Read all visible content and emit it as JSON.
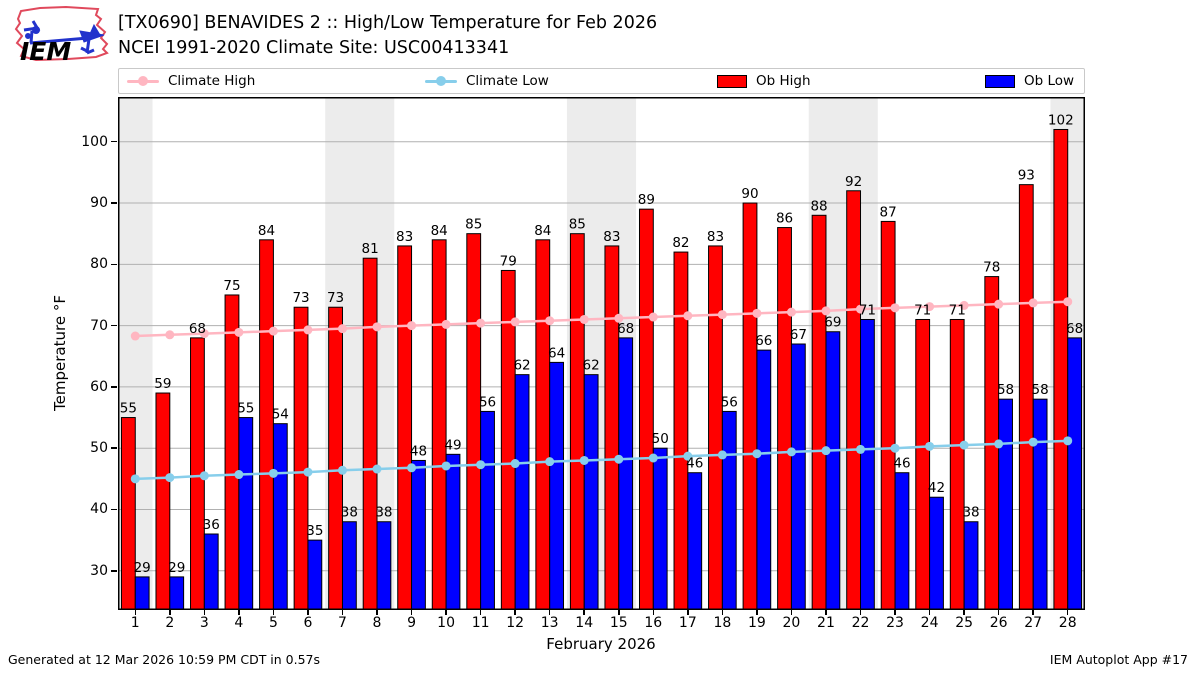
{
  "header": {
    "title_line1": "[TX0690] BENAVIDES 2 :: High/Low Temperature for Feb 2026",
    "title_line2": "NCEI 1991-2020 Climate Site: USC00413341",
    "logo_text": "IEM"
  },
  "legend": {
    "items": [
      {
        "label": "Climate High",
        "type": "line",
        "color": "#ffb6c1"
      },
      {
        "label": "Climate Low",
        "type": "line",
        "color": "#87ceeb"
      },
      {
        "label": "Ob High",
        "type": "patch",
        "color": "#ff0000"
      },
      {
        "label": "Ob Low",
        "type": "patch",
        "color": "#0000ff"
      }
    ]
  },
  "footer": {
    "left": "Generated at 12 Mar 2026 10:59 PM CDT in 0.57s",
    "right": "IEM Autoplot App #17"
  },
  "chart_data": {
    "type": "bar",
    "title": "[TX0690] BENAVIDES 2 :: High/Low Temperature for Feb 2026",
    "subtitle": "NCEI 1991-2020 Climate Site: USC00413341",
    "xlabel": "February 2026",
    "ylabel": "Temperature °F",
    "x": [
      1,
      2,
      3,
      4,
      5,
      6,
      7,
      8,
      9,
      10,
      11,
      12,
      13,
      14,
      15,
      16,
      17,
      18,
      19,
      20,
      21,
      22,
      23,
      24,
      25,
      26,
      27,
      28
    ],
    "series": [
      {
        "name": "Ob High",
        "type": "bar",
        "color": "#ff0000",
        "values": [
          55,
          59,
          68,
          75,
          84,
          73,
          73,
          81,
          83,
          84,
          85,
          79,
          84,
          85,
          83,
          89,
          82,
          83,
          90,
          86,
          88,
          92,
          87,
          71,
          71,
          78,
          93,
          102
        ]
      },
      {
        "name": "Ob Low",
        "type": "bar",
        "color": "#0000ff",
        "values": [
          29,
          29,
          36,
          55,
          54,
          35,
          38,
          38,
          48,
          49,
          56,
          62,
          64,
          62,
          68,
          50,
          46,
          56,
          66,
          67,
          69,
          71,
          46,
          42,
          38,
          58,
          58,
          68
        ]
      },
      {
        "name": "Climate High",
        "type": "line",
        "color": "#ffb6c1",
        "values": [
          68.3,
          68.5,
          68.7,
          68.9,
          69.1,
          69.3,
          69.5,
          69.8,
          70.0,
          70.2,
          70.4,
          70.6,
          70.8,
          71.0,
          71.2,
          71.4,
          71.6,
          71.8,
          72.0,
          72.2,
          72.4,
          72.7,
          72.9,
          73.1,
          73.3,
          73.5,
          73.7,
          73.9
        ]
      },
      {
        "name": "Climate Low",
        "type": "line",
        "color": "#87ceeb",
        "values": [
          45.0,
          45.2,
          45.5,
          45.7,
          45.9,
          46.1,
          46.4,
          46.6,
          46.8,
          47.1,
          47.3,
          47.5,
          47.8,
          48.0,
          48.2,
          48.4,
          48.7,
          48.9,
          49.1,
          49.4,
          49.6,
          49.8,
          50.0,
          50.3,
          50.5,
          50.7,
          51.0,
          51.2
        ]
      }
    ],
    "yticks": [
      30,
      40,
      50,
      60,
      70,
      80,
      90,
      100
    ],
    "ylim": [
      23.6,
      107.3
    ],
    "xlim": [
      0.5,
      28.5
    ],
    "weekend_shading": [
      [
        0.5,
        1.5
      ],
      [
        6.5,
        8.5
      ],
      [
        13.5,
        15.5
      ],
      [
        20.5,
        22.5
      ],
      [
        27.5,
        28.5
      ]
    ],
    "weekend_color": "#ececec",
    "grid": true,
    "grid_color": "#b0b0b0",
    "bar_width": 0.4,
    "legend_position": "top"
  }
}
